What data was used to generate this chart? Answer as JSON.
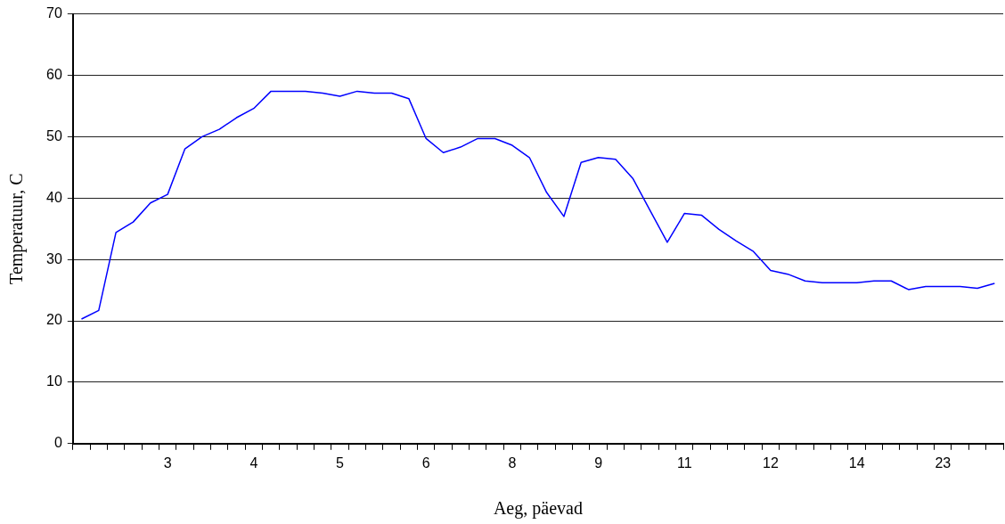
{
  "chart_data": {
    "type": "line",
    "xlabel": "Aeg, päevad",
    "ylabel": "Temperatuur, C",
    "categories": [
      null,
      null,
      null,
      null,
      null,
      "3",
      null,
      null,
      null,
      null,
      "4",
      null,
      null,
      null,
      null,
      "5",
      null,
      null,
      null,
      null,
      "6",
      null,
      null,
      null,
      null,
      "8",
      null,
      null,
      null,
      null,
      "9",
      null,
      null,
      null,
      null,
      "11",
      null,
      null,
      null,
      null,
      "12",
      null,
      null,
      null,
      null,
      "14",
      null,
      null,
      null,
      null,
      "23",
      null,
      null,
      null
    ],
    "series": [
      {
        "color": "#0000ff",
        "values": [
          20.3,
          21.7,
          34.4,
          36.1,
          39.2,
          40.6,
          48.0,
          50.0,
          51.2,
          53.1,
          54.6,
          57.4,
          57.4,
          57.4,
          57.1,
          56.6,
          57.4,
          57.1,
          57.1,
          56.2,
          49.7,
          47.4,
          48.3,
          49.7,
          49.7,
          48.6,
          46.6,
          40.9,
          37.0,
          45.8,
          46.6,
          46.3,
          43.2,
          38.0,
          32.8,
          37.5,
          37.2,
          34.9,
          33.0,
          31.3,
          28.2,
          27.6,
          26.5,
          26.2,
          26.2,
          26.2,
          26.5,
          26.5,
          25.1,
          25.6,
          25.6,
          25.6,
          25.3,
          26.1
        ]
      }
    ],
    "ylim": [
      0,
      70
    ],
    "yticks": [
      0,
      10,
      20,
      30,
      40,
      50,
      60,
      70
    ],
    "grid": "y",
    "legend": false,
    "marker": "none",
    "line_style": "solid"
  }
}
